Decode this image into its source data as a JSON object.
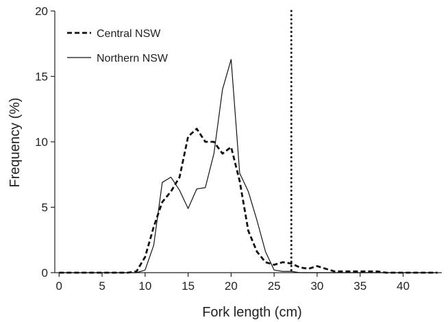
{
  "chart_data": {
    "type": "line",
    "title": "",
    "xlabel": "Fork length (cm)",
    "ylabel": "Frequency (%)",
    "xlim": [
      -0.5,
      44.5
    ],
    "ylim": [
      0,
      20
    ],
    "xticks": [
      0,
      5,
      10,
      15,
      20,
      25,
      30,
      35,
      40
    ],
    "yticks": [
      0,
      5,
      10,
      15,
      20
    ],
    "grid": false,
    "legend_position": "top-left",
    "series": [
      {
        "name": "Central NSW",
        "style": "dashed",
        "color": "#111111",
        "x": [
          0,
          1,
          2,
          3,
          4,
          5,
          6,
          7,
          8,
          9,
          10,
          11,
          12,
          13,
          14,
          15,
          16,
          17,
          18,
          19,
          20,
          21,
          22,
          23,
          24,
          25,
          26,
          27,
          28,
          29,
          30,
          31,
          32,
          33,
          34,
          35,
          36,
          37,
          38,
          39,
          40,
          41,
          42,
          43,
          44
        ],
        "values": [
          0,
          0,
          0,
          0,
          0,
          0,
          0,
          0,
          0,
          0.1,
          1.2,
          3.5,
          5.4,
          6.2,
          7.3,
          10.4,
          11.0,
          10.0,
          10.0,
          9.1,
          9.6,
          7.0,
          3.2,
          1.6,
          0.8,
          0.6,
          0.8,
          0.7,
          0.4,
          0.3,
          0.5,
          0.3,
          0.1,
          0.1,
          0.1,
          0.1,
          0.1,
          0.1,
          0,
          0,
          0,
          0,
          0,
          0,
          0
        ]
      },
      {
        "name": "Northern NSW",
        "style": "solid",
        "color": "#111111",
        "x": [
          0,
          1,
          2,
          3,
          4,
          5,
          6,
          7,
          8,
          9,
          10,
          11,
          12,
          13,
          14,
          15,
          16,
          17,
          18,
          19,
          20,
          21,
          22,
          23,
          24,
          25,
          26,
          27,
          28,
          29,
          30,
          31,
          32,
          33,
          34,
          35,
          36,
          37,
          38,
          39,
          40,
          41,
          42,
          43,
          44
        ],
        "values": [
          0,
          0,
          0,
          0,
          0,
          0,
          0,
          0,
          0,
          0,
          0.2,
          2.1,
          6.9,
          7.3,
          6.3,
          4.9,
          6.4,
          6.5,
          9.1,
          14.0,
          16.3,
          7.6,
          6.2,
          4.0,
          1.6,
          0.2,
          0.1,
          0.1,
          0,
          0,
          0,
          0,
          0,
          0,
          0,
          0,
          0,
          0,
          0,
          0,
          0,
          0,
          0,
          0,
          0
        ]
      }
    ],
    "reference_line": {
      "x": 27,
      "style": "dotted"
    }
  }
}
